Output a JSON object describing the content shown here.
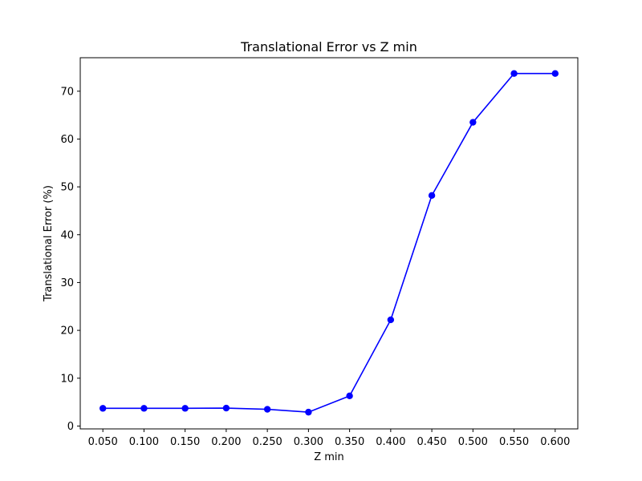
{
  "chart_data": {
    "type": "line",
    "title": "Translational Error vs Z min",
    "xlabel": "Z min",
    "ylabel": "Translational Error (%)",
    "x": [
      0.05,
      0.1,
      0.15,
      0.2,
      0.25,
      0.3,
      0.35,
      0.4,
      0.45,
      0.5,
      0.55,
      0.6
    ],
    "x_tick_labels": [
      "0.050",
      "0.100",
      "0.150",
      "0.200",
      "0.250",
      "0.300",
      "0.350",
      "0.400",
      "0.450",
      "0.500",
      "0.550",
      "0.600"
    ],
    "y_ticks": [
      0,
      10,
      20,
      30,
      40,
      50,
      60,
      70
    ],
    "y_tick_labels": [
      "0",
      "10",
      "20",
      "30",
      "40",
      "50",
      "60",
      "70"
    ],
    "xlim": [
      0.0225,
      0.6275
    ],
    "ylim": [
      -0.6,
      77.0
    ],
    "grid": false,
    "series": [
      {
        "color": "#0000ff",
        "marker": "circle",
        "values": [
          3.7,
          3.7,
          3.7,
          3.75,
          3.5,
          2.9,
          6.3,
          22.2,
          48.2,
          63.5,
          73.7,
          73.7
        ]
      }
    ]
  }
}
